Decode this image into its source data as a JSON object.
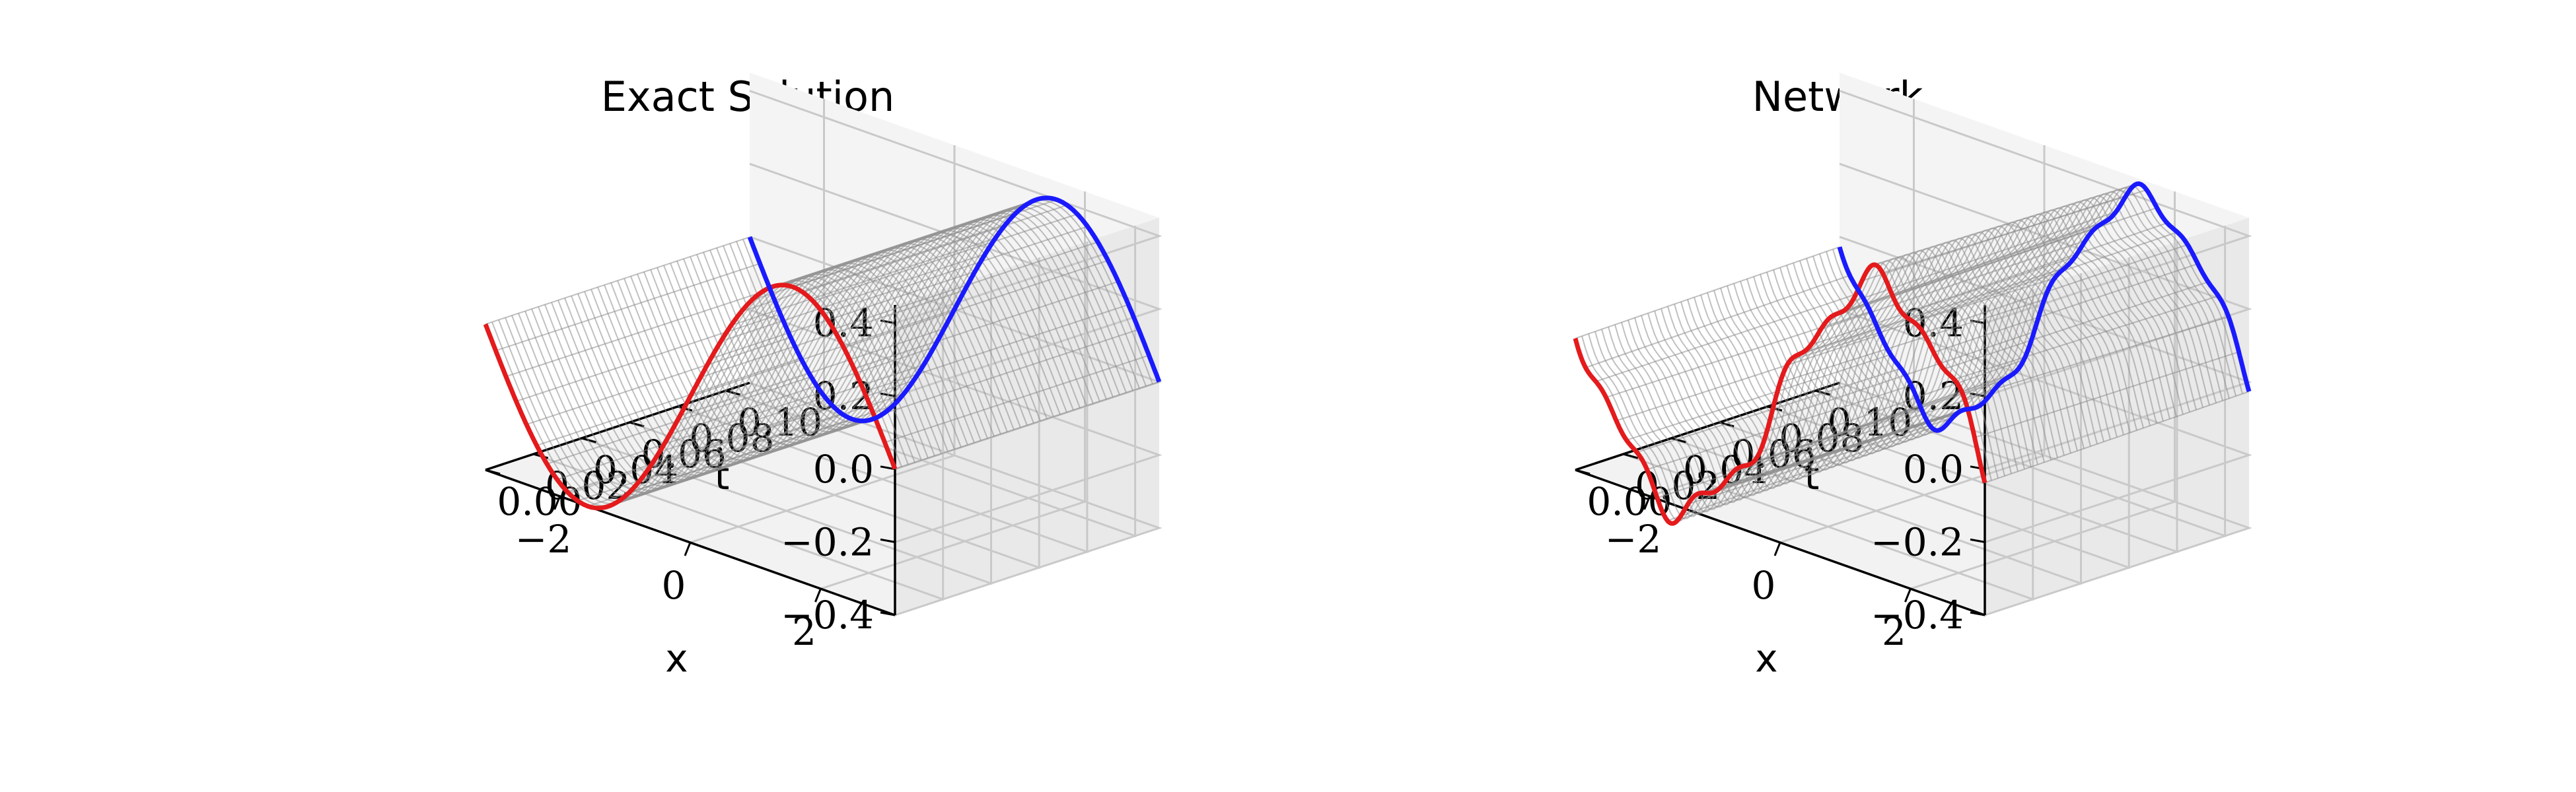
{
  "chart_data": [
    {
      "type": "surface3d",
      "title": "Exact Solution",
      "xlabel": "x",
      "tlabel": "t",
      "zlabel": "",
      "x_range": [
        -3.14,
        3.14
      ],
      "t_range": [
        0,
        0.11
      ],
      "z_range": [
        -0.4,
        0.45
      ],
      "x_ticks": [
        2,
        0,
        -2
      ],
      "x_tick_labels": [
        "2",
        "0",
        "−2"
      ],
      "t_ticks": [
        0.0,
        0.02,
        0.04,
        0.06,
        0.08,
        0.1
      ],
      "t_tick_labels": [
        "0.00",
        "0.02",
        "0.04",
        "0.06",
        "0.08",
        "0.10"
      ],
      "z_ticks": [
        -0.4,
        -0.2,
        0.0,
        0.2,
        0.4
      ],
      "z_tick_labels": [
        "−0.4",
        "−0.2",
        "0.0",
        "0.2",
        "0.4"
      ],
      "surface": "u(x,t) = 0.4 sin(x)",
      "amplitude": 0.4,
      "wiggle": 0,
      "grid": true,
      "series": [
        {
          "label_at": "t = 0",
          "color": "#e41a1c"
        },
        {
          "label_at": "t = 0.11",
          "color": "#1a1aff"
        }
      ],
      "surface_color": "#8c8c8c"
    },
    {
      "type": "surface3d",
      "title": "Network",
      "xlabel": "x",
      "tlabel": "t",
      "zlabel": "",
      "x_range": [
        -3.14,
        3.14
      ],
      "t_range": [
        0,
        0.11
      ],
      "z_range": [
        -0.4,
        0.45
      ],
      "x_ticks": [
        2,
        0,
        -2
      ],
      "x_tick_labels": [
        "2",
        "0",
        "−2"
      ],
      "t_ticks": [
        0.0,
        0.02,
        0.04,
        0.06,
        0.08,
        0.1
      ],
      "t_tick_labels": [
        "0.00",
        "0.02",
        "0.04",
        "0.06",
        "0.08",
        "0.10"
      ],
      "z_ticks": [
        -0.4,
        -0.2,
        0.0,
        0.2,
        0.4
      ],
      "z_tick_labels": [
        "−0.4",
        "−0.2",
        "0.0",
        "0.2",
        "0.4"
      ],
      "surface": "network approximation of 0.4 sin(x) with small oscillations",
      "amplitude": 0.4,
      "wiggle": 0.035,
      "grid": true,
      "series": [
        {
          "label_at": "t = 0",
          "color": "#e41a1c"
        },
        {
          "label_at": "t = 0.11",
          "color": "#1a1aff"
        }
      ],
      "surface_color": "#8c8c8c"
    }
  ]
}
